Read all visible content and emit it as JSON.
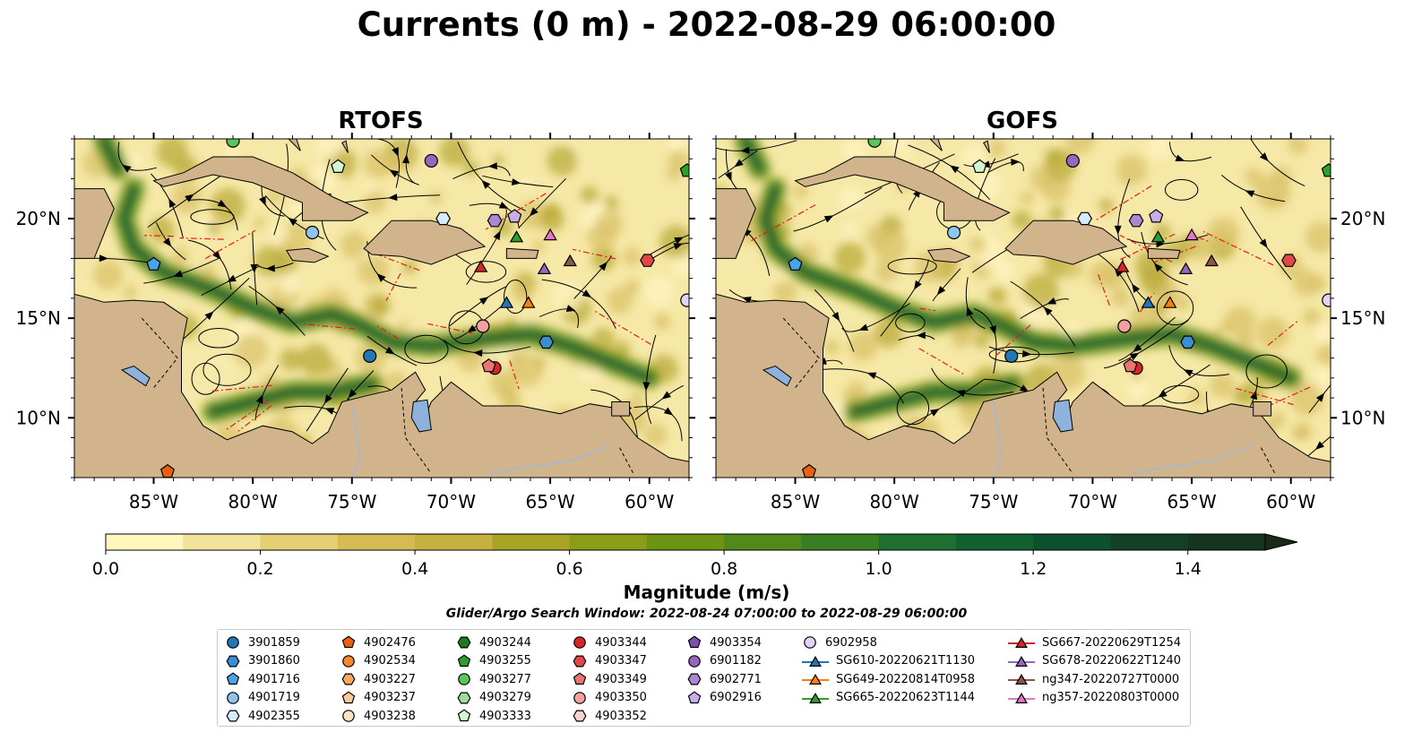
{
  "title": "Currents (0 m) - 2022-08-29 06:00:00",
  "panels": [
    {
      "title": "RTOFS"
    },
    {
      "title": "GOFS"
    }
  ],
  "lon_ticks": [
    "85°W",
    "80°W",
    "75°W",
    "70°W",
    "65°W",
    "60°W"
  ],
  "lat_ticks": [
    "20°N",
    "15°N",
    "10°N"
  ],
  "map_extent": {
    "lon": [
      -89,
      -58
    ],
    "lat": [
      7,
      24
    ]
  },
  "colorbar": {
    "label": "Magnitude (m/s)",
    "ticks": [
      "0.0",
      "0.2",
      "0.4",
      "0.6",
      "0.8",
      "1.0",
      "1.2",
      "1.4"
    ],
    "range": [
      0,
      1.5
    ],
    "colors": [
      "#fff7bc",
      "#f1e39a",
      "#e4cf74",
      "#d6bb54",
      "#c5b040",
      "#a9a524",
      "#8b9c16",
      "#6e9312",
      "#53891a",
      "#3a7e24",
      "#1f7030",
      "#11602f",
      "#0c512b",
      "#124126",
      "#16341e",
      "#1a2a17"
    ]
  },
  "search_window": "Glider/Argo Search Window: 2022-08-24 07:00:00 to 2022-08-29 06:00:00",
  "legend": [
    {
      "label": "3901859",
      "marker": "circle",
      "color": "#1f77b4",
      "lon": -74.1,
      "lat": 13.1
    },
    {
      "label": "3901860",
      "marker": "hexagon",
      "color": "#3a8fd0",
      "lon": -65.2,
      "lat": 13.8
    },
    {
      "label": "4901716",
      "marker": "pentagon",
      "color": "#4aa3e8",
      "lon": -85.0,
      "lat": 17.7
    },
    {
      "label": "4901719",
      "marker": "circle",
      "color": "#8fc4ee",
      "lon": -77.0,
      "lat": 19.3
    },
    {
      "label": "4902355",
      "marker": "hexagon",
      "color": "#d6ebfb",
      "lon": -70.4,
      "lat": 20.0
    },
    {
      "label": "4902476",
      "marker": "pentagon",
      "color": "#e8620e",
      "lon": -84.3,
      "lat": 7.3
    },
    {
      "label": "4902534",
      "marker": "circle",
      "color": "#f5872a",
      "lon": null,
      "lat": null
    },
    {
      "label": "4903227",
      "marker": "hexagon",
      "color": "#f7a95c",
      "lon": null,
      "lat": null
    },
    {
      "label": "4903237",
      "marker": "pentagon",
      "color": "#f9c99b",
      "lon": null,
      "lat": null
    },
    {
      "label": "4903238",
      "marker": "circle",
      "color": "#fde2c4",
      "lon": null,
      "lat": null
    },
    {
      "label": "4903244",
      "marker": "hexagon",
      "color": "#1f7a1f",
      "lon": null,
      "lat": null
    },
    {
      "label": "4903255",
      "marker": "pentagon",
      "color": "#2ca02c",
      "lon": -58.1,
      "lat": 22.4
    },
    {
      "label": "4903277",
      "marker": "circle",
      "color": "#5bc55b",
      "lon": -81.0,
      "lat": 23.9
    },
    {
      "label": "4903279",
      "marker": "hexagon",
      "color": "#9ddc9d",
      "lon": null,
      "lat": null
    },
    {
      "label": "4903333",
      "marker": "pentagon",
      "color": "#d2f5d2",
      "lon": -75.7,
      "lat": 22.6
    },
    {
      "label": "4903344",
      "marker": "circle",
      "color": "#d62728",
      "lon": -67.8,
      "lat": 12.5
    },
    {
      "label": "4903347",
      "marker": "hexagon",
      "color": "#e04848",
      "lon": -60.1,
      "lat": 17.9
    },
    {
      "label": "4903349",
      "marker": "pentagon",
      "color": "#ea7474",
      "lon": -68.1,
      "lat": 12.6
    },
    {
      "label": "4903350",
      "marker": "circle",
      "color": "#f2a0a0",
      "lon": -68.4,
      "lat": 14.6
    },
    {
      "label": "4903352",
      "marker": "hexagon",
      "color": "#f9d0d0",
      "lon": null,
      "lat": null
    },
    {
      "label": "4903354",
      "marker": "pentagon",
      "color": "#7b4fb0",
      "lon": null,
      "lat": null
    },
    {
      "label": "6901182",
      "marker": "circle",
      "color": "#9467bd",
      "lon": -71.0,
      "lat": 22.9
    },
    {
      "label": "6902771",
      "marker": "hexagon",
      "color": "#a987d2",
      "lon": -67.8,
      "lat": 19.9
    },
    {
      "label": "6902916",
      "marker": "pentagon",
      "color": "#c7aee6",
      "lon": -66.8,
      "lat": 20.1
    },
    {
      "label": "6902958",
      "marker": "circle",
      "color": "#e3d4f5",
      "lon": -58.1,
      "lat": 15.9
    },
    {
      "label": "SG610-20220621T1130",
      "marker": "triangle",
      "color": "#1f77b4",
      "line": true,
      "lon": -67.2,
      "lat": 15.8
    },
    {
      "label": "SG649-20220814T0958",
      "marker": "triangle",
      "color": "#ff7f0e",
      "line": true,
      "lon": -66.1,
      "lat": 15.8
    },
    {
      "label": "SG665-20220623T1144",
      "marker": "triangle",
      "color": "#2ca02c",
      "line": true,
      "lon": -66.7,
      "lat": 19.1
    },
    {
      "label": "SG667-20220629T1254",
      "marker": "triangle",
      "color": "#d62728",
      "line": true,
      "lon": -68.5,
      "lat": 17.6
    },
    {
      "label": "SG678-20220622T1240",
      "marker": "triangle",
      "color": "#9467bd",
      "line": true,
      "lon": -65.3,
      "lat": 17.5
    },
    {
      "label": "ng347-20220727T0000",
      "marker": "triangle",
      "color": "#8c564b",
      "line": true,
      "lon": -64.0,
      "lat": 17.9
    },
    {
      "label": "ng357-20220803T0000",
      "marker": "triangle",
      "color": "#e377c2",
      "line": true,
      "lon": -65.0,
      "lat": 19.2
    }
  ]
}
